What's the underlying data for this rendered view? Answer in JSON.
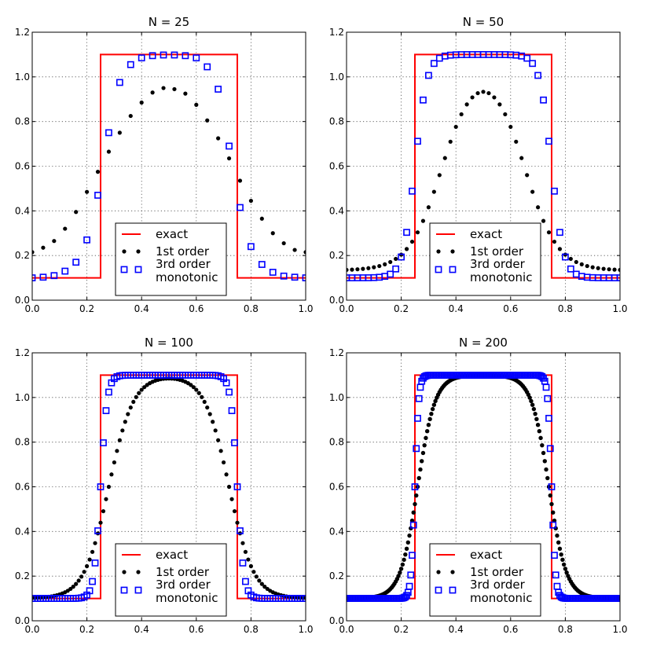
{
  "colors": {
    "exact": "#ff0000",
    "first_order": "#000000",
    "third_order": "#0000ff"
  },
  "legend_labels": [
    "exact",
    "1st order",
    "3rd order",
    "monotonic"
  ],
  "chart_data": [
    {
      "type": "line",
      "title": "N = 25",
      "xlim": [
        0,
        1
      ],
      "ylim": [
        0,
        1.2
      ],
      "xticks": [
        "0.0",
        "0.2",
        "0.4",
        "0.6",
        "0.8",
        "1.0"
      ],
      "yticks": [
        "0.0",
        "0.2",
        "0.4",
        "0.6",
        "0.8",
        "1.0",
        "1.2"
      ],
      "grid": true,
      "legend_position": "bottom-center",
      "series": [
        {
          "name": "exact",
          "style": "line",
          "x": [
            0.0,
            0.25,
            0.25,
            0.75,
            0.75,
            1.0
          ],
          "y": [
            0.1,
            0.1,
            1.1,
            1.1,
            0.1,
            0.1
          ]
        },
        {
          "name": "1st order",
          "style": "dots",
          "x": [
            0.0,
            0.04,
            0.08,
            0.12,
            0.16,
            0.2,
            0.24,
            0.28,
            0.32,
            0.36,
            0.4,
            0.44,
            0.48,
            0.52,
            0.56,
            0.6,
            0.64,
            0.68,
            0.72,
            0.76,
            0.8,
            0.84,
            0.88,
            0.92,
            0.96,
            1.0
          ],
          "y": [
            0.215,
            0.235,
            0.265,
            0.32,
            0.395,
            0.485,
            0.575,
            0.665,
            0.75,
            0.825,
            0.885,
            0.93,
            0.95,
            0.945,
            0.925,
            0.875,
            0.805,
            0.725,
            0.635,
            0.535,
            0.445,
            0.365,
            0.3,
            0.255,
            0.225,
            0.215
          ]
        },
        {
          "name": "3rd order",
          "style": "squares",
          "x": [
            0.0,
            0.04,
            0.08,
            0.12,
            0.16,
            0.2,
            0.24,
            0.28,
            0.32,
            0.36,
            0.4,
            0.44,
            0.48,
            0.52,
            0.56,
            0.6,
            0.64,
            0.68,
            0.72,
            0.76,
            0.8,
            0.84,
            0.88,
            0.92,
            0.96,
            1.0
          ],
          "y": [
            0.1,
            0.103,
            0.11,
            0.13,
            0.17,
            0.27,
            0.47,
            0.75,
            0.975,
            1.055,
            1.085,
            1.095,
            1.098,
            1.098,
            1.095,
            1.085,
            1.045,
            0.945,
            0.69,
            0.415,
            0.24,
            0.16,
            0.125,
            0.108,
            0.103,
            0.1
          ]
        }
      ]
    },
    {
      "type": "line",
      "title": "N = 50",
      "xlim": [
        0,
        1
      ],
      "ylim": [
        0,
        1.2
      ],
      "xticks": [
        "0.0",
        "0.2",
        "0.4",
        "0.6",
        "0.8",
        "1.0"
      ],
      "yticks": [
        "0.0",
        "0.2",
        "0.4",
        "0.6",
        "0.8",
        "1.0",
        "1.2"
      ],
      "grid": true,
      "legend_position": "bottom-center",
      "series": [
        {
          "name": "exact",
          "style": "line",
          "x": [
            0.0,
            0.25,
            0.25,
            0.75,
            0.75,
            1.0
          ],
          "y": [
            0.1,
            0.1,
            1.1,
            1.1,
            0.1,
            0.1
          ]
        },
        {
          "name": "1st order",
          "style": "dots",
          "n": 50,
          "width": 0.3,
          "sigma": 0.06,
          "peak": 1.07,
          "base": 0.133
        },
        {
          "name": "3rd order",
          "style": "squares",
          "n": 50,
          "width": 0.5,
          "sigma": 0.022,
          "peak": 1.1,
          "base": 0.1
        }
      ]
    },
    {
      "type": "line",
      "title": "N = 100",
      "xlim": [
        0,
        1
      ],
      "ylim": [
        0,
        1.2
      ],
      "xticks": [
        "0.0",
        "0.2",
        "0.4",
        "0.6",
        "0.8",
        "1.0"
      ],
      "yticks": [
        "0.0",
        "0.2",
        "0.4",
        "0.6",
        "0.8",
        "1.0",
        "1.2"
      ],
      "grid": true,
      "legend_position": "bottom-center",
      "series": [
        {
          "name": "exact",
          "style": "line",
          "x": [
            0.0,
            0.25,
            0.25,
            0.75,
            0.75,
            1.0
          ],
          "y": [
            0.1,
            0.1,
            1.1,
            1.1,
            0.1,
            0.1
          ]
        },
        {
          "name": "1st order",
          "style": "dots",
          "n": 100,
          "width": 0.44,
          "sigma": 0.045,
          "peak": 1.1,
          "base": 0.1
        },
        {
          "name": "3rd order",
          "style": "squares",
          "n": 100,
          "width": 0.5,
          "sigma": 0.012,
          "peak": 1.1,
          "base": 0.1
        }
      ]
    },
    {
      "type": "line",
      "title": "N = 200",
      "xlim": [
        0,
        1
      ],
      "ylim": [
        0,
        1.2
      ],
      "xticks": [
        "0.0",
        "0.2",
        "0.4",
        "0.6",
        "0.8",
        "1.0"
      ],
      "yticks": [
        "0.0",
        "0.2",
        "0.4",
        "0.6",
        "0.8",
        "1.0",
        "1.2"
      ],
      "grid": true,
      "legend_position": "bottom-center",
      "series": [
        {
          "name": "exact",
          "style": "line",
          "x": [
            0.0,
            0.25,
            0.25,
            0.75,
            0.75,
            1.0
          ],
          "y": [
            0.1,
            0.1,
            1.1,
            1.1,
            0.1,
            0.1
          ]
        },
        {
          "name": "1st order",
          "style": "dots",
          "n": 200,
          "width": 0.48,
          "sigma": 0.032,
          "peak": 1.1,
          "base": 0.1
        },
        {
          "name": "3rd order",
          "style": "squares",
          "n": 200,
          "width": 0.5,
          "sigma": 0.007,
          "peak": 1.1,
          "base": 0.1
        }
      ]
    }
  ]
}
